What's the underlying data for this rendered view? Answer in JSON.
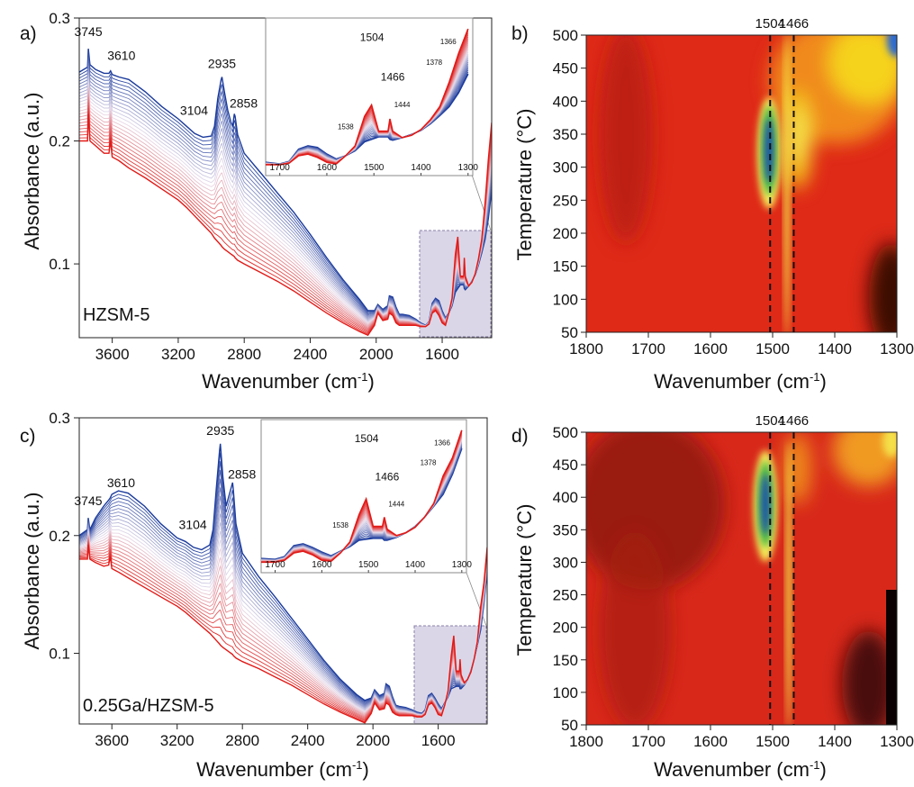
{
  "figure": {
    "panels": {
      "a": "a)",
      "b": "b)",
      "c": "c)",
      "d": "d)"
    },
    "samples": {
      "a": "HZSM-5",
      "c": "0.25Ga/HZSM-5"
    }
  },
  "colors": {
    "cold": "#1a3a9c",
    "hot": "#e11a17",
    "box": "#b7aecf"
  },
  "chart_data": [
    {
      "id": "a",
      "type": "line",
      "xlabel": "Wavenumber (cm-1)",
      "ylabel": "Absorbance (a.u.)",
      "xlim": [
        3800,
        1300
      ],
      "ylim": [
        0.04,
        0.3
      ],
      "xticks": [
        3600,
        3200,
        2800,
        2400,
        2000,
        1600
      ],
      "yticks": [
        0.1,
        0.2,
        0.3
      ],
      "series_count": 24,
      "series_color_range": [
        "blue (first)",
        "red (last)"
      ],
      "peak_labels": [
        "3745",
        "3610",
        "3104",
        "2935",
        "2858"
      ],
      "first_spectrum": {
        "x": [
          3800,
          3750,
          3745,
          3735,
          3700,
          3650,
          3620,
          3610,
          3600,
          3560,
          3500,
          3400,
          3300,
          3200,
          3150,
          3100,
          3050,
          3000,
          2980,
          2960,
          2940,
          2935,
          2920,
          2900,
          2880,
          2870,
          2860,
          2855,
          2840,
          2800,
          2700,
          2600,
          2500,
          2400,
          2300,
          2200,
          2100,
          2050,
          2010,
          1990,
          1960,
          1930,
          1920,
          1900,
          1880,
          1860,
          1840,
          1800,
          1760,
          1730,
          1700,
          1680,
          1660,
          1640,
          1620,
          1600,
          1580,
          1560,
          1540,
          1520,
          1505,
          1490,
          1470,
          1466,
          1460,
          1440,
          1420,
          1400,
          1380,
          1360,
          1340,
          1320,
          1300
        ],
        "y": [
          0.256,
          0.26,
          0.275,
          0.262,
          0.258,
          0.255,
          0.255,
          0.257,
          0.254,
          0.252,
          0.25,
          0.24,
          0.228,
          0.218,
          0.212,
          0.206,
          0.203,
          0.204,
          0.212,
          0.235,
          0.25,
          0.252,
          0.24,
          0.225,
          0.215,
          0.212,
          0.222,
          0.22,
          0.205,
          0.19,
          0.174,
          0.158,
          0.142,
          0.124,
          0.105,
          0.087,
          0.071,
          0.062,
          0.062,
          0.067,
          0.063,
          0.066,
          0.074,
          0.073,
          0.065,
          0.059,
          0.059,
          0.058,
          0.055,
          0.052,
          0.05,
          0.053,
          0.068,
          0.072,
          0.07,
          0.062,
          0.056,
          0.06,
          0.066,
          0.077,
          0.08,
          0.083,
          0.083,
          0.08,
          0.079,
          0.082,
          0.086,
          0.091,
          0.099,
          0.109,
          0.12,
          0.137,
          0.16
        ]
      },
      "last_spectrum": {
        "x": [
          3800,
          3750,
          3745,
          3735,
          3700,
          3650,
          3620,
          3610,
          3600,
          3560,
          3500,
          3400,
          3300,
          3200,
          3150,
          3100,
          3050,
          3000,
          2980,
          2960,
          2940,
          2935,
          2920,
          2900,
          2880,
          2870,
          2860,
          2855,
          2840,
          2800,
          2700,
          2600,
          2500,
          2400,
          2300,
          2200,
          2100,
          2050,
          2010,
          1990,
          1960,
          1930,
          1920,
          1900,
          1880,
          1860,
          1840,
          1800,
          1760,
          1730,
          1700,
          1680,
          1660,
          1640,
          1620,
          1600,
          1580,
          1560,
          1540,
          1520,
          1505,
          1490,
          1470,
          1466,
          1460,
          1440,
          1420,
          1400,
          1380,
          1360,
          1340,
          1320,
          1300
        ],
        "y": [
          0.2,
          0.2,
          0.222,
          0.2,
          0.196,
          0.19,
          0.19,
          0.2,
          0.187,
          0.184,
          0.178,
          0.17,
          0.161,
          0.152,
          0.146,
          0.139,
          0.132,
          0.125,
          0.121,
          0.118,
          0.115,
          0.114,
          0.112,
          0.11,
          0.108,
          0.107,
          0.106,
          0.105,
          0.103,
          0.1,
          0.093,
          0.086,
          0.078,
          0.069,
          0.06,
          0.052,
          0.045,
          0.042,
          0.05,
          0.06,
          0.054,
          0.055,
          0.06,
          0.058,
          0.052,
          0.05,
          0.05,
          0.05,
          0.05,
          0.049,
          0.049,
          0.051,
          0.06,
          0.062,
          0.058,
          0.052,
          0.05,
          0.06,
          0.072,
          0.108,
          0.122,
          0.09,
          0.09,
          0.105,
          0.09,
          0.082,
          0.085,
          0.092,
          0.104,
          0.12,
          0.15,
          0.185,
          0.215
        ]
      },
      "inset": {
        "xlim": [
          1730,
          1290
        ],
        "xticks": [
          1700,
          1600,
          1500,
          1400,
          1300
        ],
        "peak_labels": [
          "1504",
          "1466",
          "1444",
          "1378",
          "1366",
          "1538"
        ]
      }
    },
    {
      "id": "b",
      "type": "heatmap",
      "xlabel": "Wavenumber (cm-1)",
      "ylabel": "Temperature (°C)",
      "xlim": [
        1800,
        1300
      ],
      "ylim": [
        50,
        500
      ],
      "xticks": [
        1800,
        1700,
        1600,
        1500,
        1400,
        1300
      ],
      "yticks": [
        50,
        100,
        150,
        200,
        250,
        300,
        350,
        400,
        450,
        500
      ],
      "markers": [
        1504,
        1466
      ],
      "features": [
        {
          "x": 1504,
          "t": 320,
          "intensity": "max",
          "extent_t": [
            230,
            430
          ]
        },
        {
          "x": 1466,
          "t": 275,
          "intensity": "high",
          "extent_t": [
            50,
            500
          ]
        },
        {
          "x": 1378,
          "t": 360,
          "intensity": "medium",
          "extent_t": [
            200,
            500
          ]
        },
        {
          "x": 1300,
          "t": 500,
          "intensity": "max",
          "extent_t": [
            380,
            500
          ]
        }
      ]
    },
    {
      "id": "c",
      "type": "line",
      "xlabel": "Wavenumber (cm-1)",
      "ylabel": "Absorbance (a.u.)",
      "xlim": [
        3800,
        1300
      ],
      "ylim": [
        0.04,
        0.3
      ],
      "xticks": [
        3600,
        3200,
        2800,
        2400,
        2000,
        1600
      ],
      "yticks": [
        0.1,
        0.2,
        0.3
      ],
      "series_count": 24,
      "series_color_range": [
        "blue (first)",
        "red (last)"
      ],
      "peak_labels": [
        "3745",
        "3610",
        "3104",
        "2935",
        "2858"
      ],
      "first_spectrum": {
        "x": [
          3800,
          3750,
          3745,
          3735,
          3700,
          3650,
          3620,
          3610,
          3600,
          3560,
          3500,
          3400,
          3300,
          3200,
          3150,
          3100,
          3050,
          3000,
          2980,
          2960,
          2940,
          2935,
          2920,
          2900,
          2880,
          2870,
          2860,
          2855,
          2840,
          2800,
          2700,
          2600,
          2500,
          2400,
          2300,
          2200,
          2100,
          2050,
          2010,
          1990,
          1960,
          1930,
          1920,
          1900,
          1880,
          1860,
          1840,
          1800,
          1760,
          1730,
          1700,
          1680,
          1660,
          1640,
          1620,
          1600,
          1580,
          1560,
          1540,
          1520,
          1505,
          1490,
          1470,
          1466,
          1460,
          1440,
          1420,
          1400,
          1380,
          1360,
          1340,
          1320,
          1300
        ],
        "y": [
          0.2,
          0.205,
          0.215,
          0.205,
          0.215,
          0.225,
          0.23,
          0.232,
          0.235,
          0.238,
          0.236,
          0.225,
          0.21,
          0.198,
          0.195,
          0.19,
          0.188,
          0.192,
          0.205,
          0.24,
          0.272,
          0.278,
          0.25,
          0.225,
          0.235,
          0.24,
          0.245,
          0.238,
          0.21,
          0.185,
          0.165,
          0.148,
          0.13,
          0.112,
          0.094,
          0.078,
          0.065,
          0.06,
          0.062,
          0.069,
          0.064,
          0.066,
          0.074,
          0.072,
          0.063,
          0.056,
          0.055,
          0.054,
          0.052,
          0.05,
          0.049,
          0.052,
          0.064,
          0.066,
          0.062,
          0.057,
          0.053,
          0.058,
          0.063,
          0.07,
          0.071,
          0.072,
          0.072,
          0.07,
          0.07,
          0.073,
          0.078,
          0.085,
          0.095,
          0.107,
          0.12,
          0.142,
          0.17
        ]
      },
      "last_spectrum": {
        "x": [
          3800,
          3750,
          3745,
          3735,
          3700,
          3650,
          3620,
          3610,
          3600,
          3560,
          3500,
          3400,
          3300,
          3200,
          3150,
          3100,
          3050,
          3000,
          2980,
          2960,
          2940,
          2935,
          2920,
          2900,
          2880,
          2870,
          2860,
          2855,
          2840,
          2800,
          2700,
          2600,
          2500,
          2400,
          2300,
          2200,
          2100,
          2050,
          2010,
          1990,
          1960,
          1930,
          1920,
          1900,
          1880,
          1860,
          1840,
          1800,
          1760,
          1730,
          1700,
          1680,
          1660,
          1640,
          1620,
          1600,
          1580,
          1560,
          1540,
          1520,
          1505,
          1490,
          1470,
          1466,
          1460,
          1440,
          1420,
          1400,
          1380,
          1360,
          1340,
          1320,
          1300
        ],
        "y": [
          0.18,
          0.18,
          0.192,
          0.18,
          0.177,
          0.174,
          0.175,
          0.182,
          0.172,
          0.169,
          0.164,
          0.156,
          0.148,
          0.14,
          0.135,
          0.129,
          0.123,
          0.117,
          0.114,
          0.111,
          0.108,
          0.107,
          0.105,
          0.103,
          0.101,
          0.1,
          0.099,
          0.098,
          0.096,
          0.093,
          0.087,
          0.08,
          0.073,
          0.065,
          0.057,
          0.05,
          0.044,
          0.041,
          0.049,
          0.058,
          0.052,
          0.053,
          0.058,
          0.056,
          0.05,
          0.048,
          0.047,
          0.047,
          0.047,
          0.046,
          0.046,
          0.048,
          0.056,
          0.058,
          0.054,
          0.048,
          0.047,
          0.056,
          0.068,
          0.098,
          0.115,
          0.085,
          0.085,
          0.095,
          0.082,
          0.075,
          0.078,
          0.084,
          0.095,
          0.11,
          0.14,
          0.16,
          0.19
        ]
      },
      "inset": {
        "xlim": [
          1730,
          1290
        ],
        "xticks": [
          1700,
          1600,
          1500,
          1400,
          1300
        ],
        "peak_labels": [
          "1504",
          "1466",
          "1444",
          "1378",
          "1366",
          "1538"
        ]
      }
    },
    {
      "id": "d",
      "type": "heatmap",
      "xlabel": "Wavenumber (cm-1)",
      "ylabel": "Temperature (°C)",
      "xlim": [
        1800,
        1300
      ],
      "ylim": [
        50,
        500
      ],
      "xticks": [
        1800,
        1700,
        1600,
        1500,
        1400,
        1300
      ],
      "yticks": [
        50,
        100,
        150,
        200,
        250,
        300,
        350,
        400,
        450,
        500
      ],
      "markers": [
        1504,
        1466
      ],
      "features": [
        {
          "x": 1504,
          "t": 375,
          "intensity": "max",
          "extent_t": [
            270,
            490
          ]
        },
        {
          "x": 1466,
          "t": 250,
          "intensity": "high",
          "extent_t": [
            50,
            420
          ]
        },
        {
          "x": 1378,
          "t": 440,
          "intensity": "medium",
          "extent_t": [
            380,
            500
          ]
        },
        {
          "x": 1310,
          "t": 470,
          "intensity": "medium",
          "extent_t": [
            420,
            500
          ]
        }
      ]
    }
  ]
}
